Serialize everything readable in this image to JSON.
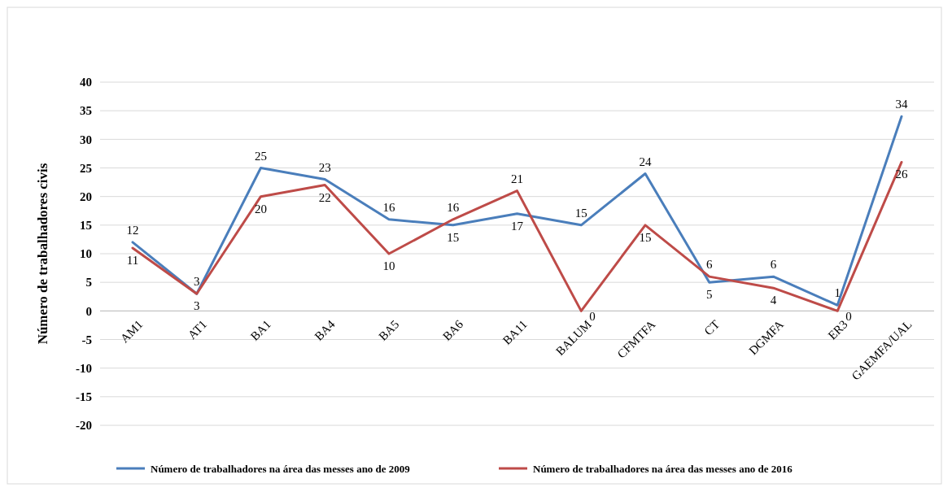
{
  "chart_data": {
    "type": "line",
    "ylabel": "Número de trabalhadores civis",
    "categories": [
      "AM1",
      "AT1",
      "BA1",
      "BA4",
      "BA5",
      "BA6",
      "BA11",
      "BALUM",
      "CFMTFA",
      "CT",
      "DGMFA",
      "ER3",
      "GAEMFA/UAL"
    ],
    "series": [
      {
        "name": "Número de trabalhadores na área das messes ano de 2009",
        "color": "#4a7ebb",
        "values": [
          12,
          3,
          25,
          23,
          16,
          15,
          17,
          15,
          24,
          5,
          6,
          1,
          34
        ]
      },
      {
        "name": "Número de trabalhadores na área das messes ano de 2016",
        "color": "#be4b48",
        "values": [
          11,
          3,
          20,
          22,
          10,
          16,
          21,
          0,
          15,
          6,
          4,
          0,
          26
        ]
      }
    ],
    "ylim": [
      -20,
      40
    ],
    "yticks": [
      -20,
      -15,
      -10,
      -5,
      0,
      5,
      10,
      15,
      20,
      25,
      30,
      35,
      40
    ],
    "grid": "y",
    "legend": "bottom",
    "data_labels": true,
    "marker": "none",
    "line_style": "solid"
  }
}
